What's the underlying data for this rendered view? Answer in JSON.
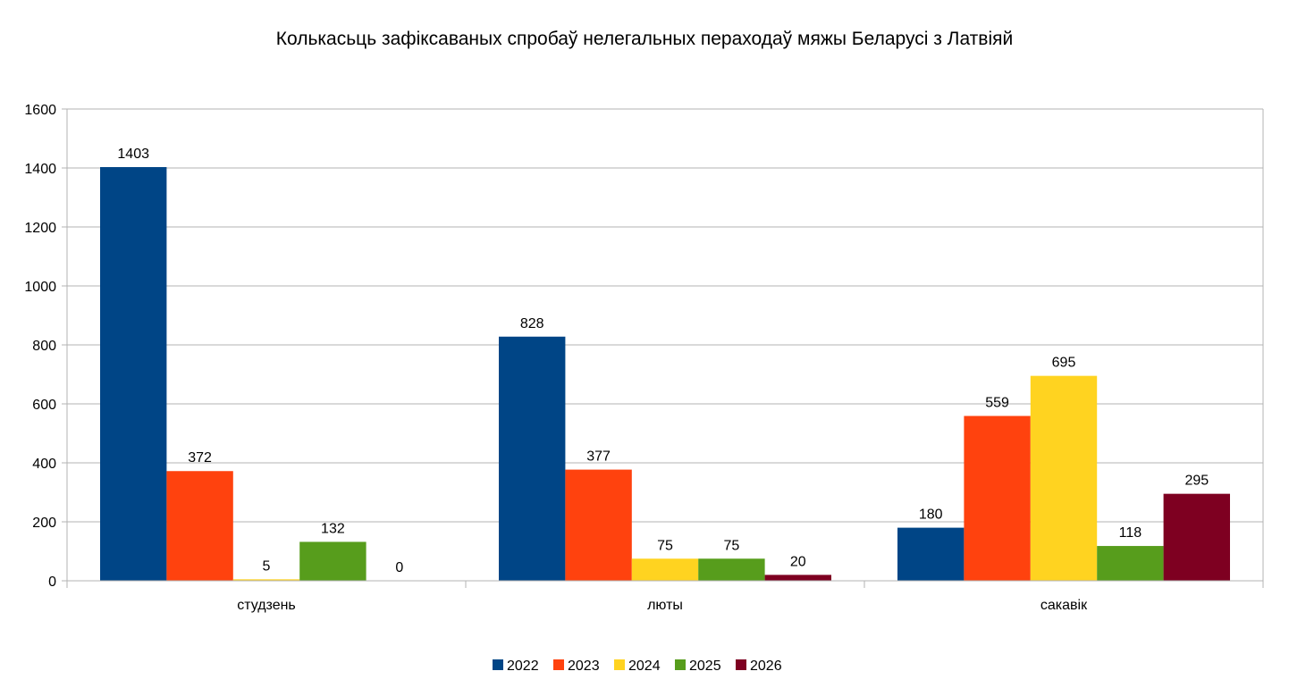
{
  "chart_data": {
    "type": "bar",
    "title": "Колькасьць зафіксаваных спробаў нелегальных пераходаў мяжы Беларусі з Латвіяй",
    "xlabel": "",
    "ylabel": "",
    "ylim": [
      0,
      1600
    ],
    "yticks": [
      0,
      200,
      400,
      600,
      800,
      1000,
      1200,
      1400,
      1600
    ],
    "grid": true,
    "legend_position": "bottom",
    "categories": [
      "студзень",
      "люты",
      "сакавік"
    ],
    "series": [
      {
        "name": "2022",
        "color": "#004586",
        "values": [
          1403,
          828,
          180
        ]
      },
      {
        "name": "2023",
        "color": "#ff420e",
        "values": [
          372,
          377,
          559
        ]
      },
      {
        "name": "2024",
        "color": "#ffd320",
        "values": [
          5,
          75,
          695
        ]
      },
      {
        "name": "2025",
        "color": "#579d1c",
        "values": [
          132,
          75,
          118
        ]
      },
      {
        "name": "2026",
        "color": "#7e0021",
        "values": [
          0,
          20,
          295
        ]
      }
    ]
  }
}
